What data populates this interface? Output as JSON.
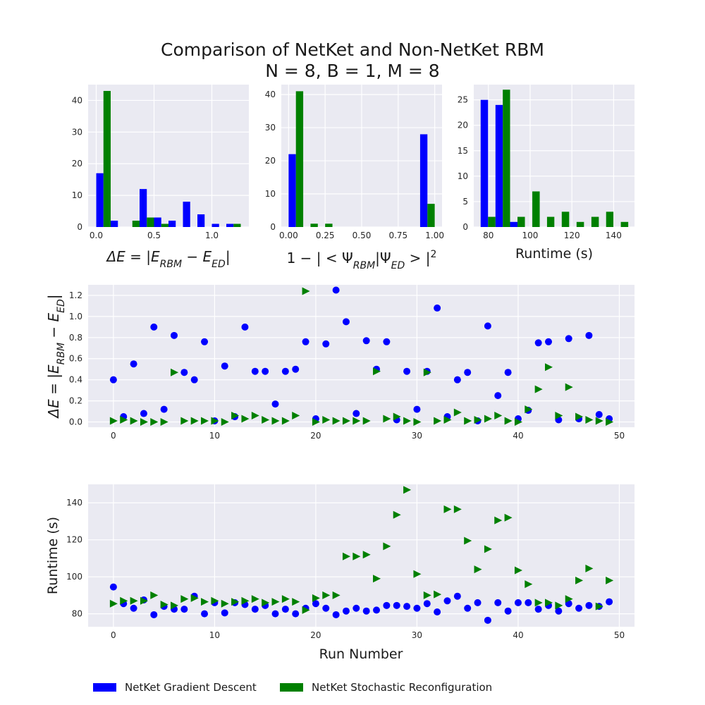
{
  "title_line1": "Comparison of NetKet and Non-NetKet RBM",
  "title_line2": "N = 8, B = 1, M = 8",
  "colors": {
    "gd": "#0000ff",
    "sr": "#008000",
    "axes_bg": "#eaeaf2",
    "grid": "#ffffff"
  },
  "legend": [
    {
      "label": "NetKet Gradient Descent",
      "color": "#0000ff"
    },
    {
      "label": "NetKet Stochastic Reconfiguration",
      "color": "#008000"
    }
  ],
  "chart_data": [
    {
      "type": "bar",
      "xlabel": "ΔE = |E_RBM − E_ED|",
      "xlim": [
        -0.07,
        1.32
      ],
      "ylim": [
        0,
        45
      ],
      "xticks": [
        0.0,
        0.5,
        1.0
      ],
      "xtick_labels": [
        "0.0",
        "0.5",
        "1.0"
      ],
      "yticks": [
        0,
        10,
        20,
        30,
        40
      ],
      "ytick_labels": [
        "0",
        "10",
        "20",
        "30",
        "40"
      ],
      "bin_edges": [
        0.0,
        0.125,
        0.25,
        0.375,
        0.5,
        0.625,
        0.75,
        0.875,
        1.0,
        1.125,
        1.25
      ],
      "series": [
        {
          "name": "NetKet Gradient Descent",
          "values": [
            17,
            2,
            0,
            12,
            3,
            2,
            8,
            4,
            1,
            1
          ]
        },
        {
          "name": "NetKet Stochastic Reconfiguration",
          "values": [
            43,
            0,
            2,
            3,
            1,
            0,
            0,
            0,
            0,
            1
          ]
        }
      ],
      "grid": true
    },
    {
      "type": "bar",
      "xlabel": "1 − | < Ψ_RBM|Ψ_ED > |²",
      "xlim": [
        -0.05,
        1.05
      ],
      "ylim": [
        0,
        43
      ],
      "xticks": [
        0.0,
        0.25,
        0.5,
        0.75,
        1.0
      ],
      "xtick_labels": [
        "0.00",
        "0.25",
        "0.50",
        "0.75",
        "1.00"
      ],
      "yticks": [
        0,
        10,
        20,
        30,
        40
      ],
      "ytick_labels": [
        "0",
        "10",
        "20",
        "30",
        "40"
      ],
      "bin_edges": [
        0.0,
        0.1,
        0.2,
        0.3,
        0.4,
        0.5,
        0.6,
        0.7,
        0.8,
        0.9,
        1.0
      ],
      "series": [
        {
          "name": "NetKet Gradient Descent",
          "values": [
            22,
            0,
            0,
            0,
            0,
            0,
            0,
            0,
            0,
            28
          ]
        },
        {
          "name": "NetKet Stochastic Reconfiguration",
          "values": [
            41,
            1,
            1,
            0,
            0,
            0,
            0,
            0,
            0,
            7
          ]
        }
      ],
      "grid": true
    },
    {
      "type": "bar",
      "xlabel": "Runtime (s)",
      "xlim": [
        73,
        150
      ],
      "ylim": [
        0,
        28
      ],
      "xticks": [
        80,
        100,
        120,
        140
      ],
      "xtick_labels": [
        "80",
        "100",
        "120",
        "140"
      ],
      "yticks": [
        0,
        5,
        10,
        15,
        20,
        25
      ],
      "ytick_labels": [
        "0",
        "5",
        "10",
        "15",
        "20",
        "25"
      ],
      "bin_edges": [
        76.3,
        83.4,
        90.4,
        97.5,
        104.6,
        111.6,
        118.7,
        125.8,
        132.9,
        139.9,
        147.0
      ],
      "series": [
        {
          "name": "NetKet Gradient Descent",
          "values": [
            25,
            24,
            1,
            0,
            0,
            0,
            0,
            0,
            0,
            0
          ]
        },
        {
          "name": "NetKet Stochastic Reconfiguration",
          "values": [
            2,
            27,
            2,
            7,
            2,
            3,
            1,
            2,
            3,
            1
          ]
        }
      ],
      "grid": true
    },
    {
      "type": "scatter",
      "ylabel": "ΔE = |E_RBM − E_ED|",
      "xlim": [
        -2.5,
        51.5
      ],
      "ylim": [
        -0.05,
        1.3
      ],
      "xticks": [
        0,
        10,
        20,
        30,
        40,
        50
      ],
      "xtick_labels": [
        "0",
        "10",
        "20",
        "30",
        "40",
        "50"
      ],
      "yticks": [
        0.0,
        0.2,
        0.4,
        0.6,
        0.8,
        1.0,
        1.2
      ],
      "ytick_labels": [
        "0.0",
        "0.2",
        "0.4",
        "0.6",
        "0.8",
        "1.0",
        "1.2"
      ],
      "x": [
        0,
        1,
        2,
        3,
        4,
        5,
        6,
        7,
        8,
        9,
        10,
        11,
        12,
        13,
        14,
        15,
        16,
        17,
        18,
        19,
        20,
        21,
        22,
        23,
        24,
        25,
        26,
        27,
        28,
        29,
        30,
        31,
        32,
        33,
        34,
        35,
        36,
        37,
        38,
        39,
        40,
        41,
        42,
        43,
        44,
        45,
        46,
        47,
        48,
        49
      ],
      "series": [
        {
          "name": "NetKet Gradient Descent",
          "marker": "circle",
          "values": [
            0.4,
            0.05,
            0.55,
            0.08,
            0.9,
            0.12,
            0.82,
            0.47,
            0.4,
            0.76,
            0.01,
            0.53,
            0.05,
            0.9,
            0.48,
            0.48,
            0.17,
            0.48,
            0.5,
            0.76,
            0.03,
            0.74,
            1.25,
            0.95,
            0.08,
            0.77,
            0.5,
            0.76,
            0.02,
            0.48,
            0.12,
            0.48,
            1.08,
            0.05,
            0.4,
            0.47,
            0.01,
            0.91,
            0.25,
            0.47,
            0.03,
            0.11,
            0.75,
            0.76,
            0.02,
            0.79,
            0.03,
            0.82,
            0.07,
            0.03
          ]
        },
        {
          "name": "NetKet Stochastic Reconfiguration",
          "marker": "triangle-right",
          "values": [
            0.01,
            0.02,
            0.01,
            0.0,
            0.0,
            0.0,
            0.47,
            0.01,
            0.01,
            0.01,
            0.01,
            0.0,
            0.06,
            0.03,
            0.06,
            0.02,
            0.01,
            0.01,
            0.06,
            1.24,
            0.0,
            0.02,
            0.01,
            0.01,
            0.01,
            0.01,
            0.48,
            0.03,
            0.05,
            0.01,
            0.0,
            0.47,
            0.01,
            0.02,
            0.09,
            0.01,
            0.02,
            0.03,
            0.06,
            0.01,
            0.0,
            0.12,
            0.31,
            0.52,
            0.06,
            0.33,
            0.05,
            0.02,
            0.01,
            0.0
          ]
        }
      ],
      "grid": true
    },
    {
      "type": "scatter",
      "xlabel": "Run Number",
      "ylabel": "Runtime (s)",
      "xlim": [
        -2.5,
        51.5
      ],
      "ylim": [
        73,
        150
      ],
      "xticks": [
        0,
        10,
        20,
        30,
        40,
        50
      ],
      "xtick_labels": [
        "0",
        "10",
        "20",
        "30",
        "40",
        "50"
      ],
      "yticks": [
        80,
        100,
        120,
        140
      ],
      "ytick_labels": [
        "80",
        "100",
        "120",
        "140"
      ],
      "x": [
        0,
        1,
        2,
        3,
        4,
        5,
        6,
        7,
        8,
        9,
        10,
        11,
        12,
        13,
        14,
        15,
        16,
        17,
        18,
        19,
        20,
        21,
        22,
        23,
        24,
        25,
        26,
        27,
        28,
        29,
        30,
        31,
        32,
        33,
        34,
        35,
        36,
        37,
        38,
        39,
        40,
        41,
        42,
        43,
        44,
        45,
        46,
        47,
        48,
        49
      ],
      "series": [
        {
          "name": "NetKet Gradient Descent",
          "marker": "circle",
          "values": [
            94.5,
            85.5,
            83,
            87.5,
            79.5,
            84,
            82.5,
            82.5,
            89.5,
            80,
            86,
            80.5,
            86,
            85,
            82.5,
            84.5,
            80,
            82.5,
            80,
            83,
            85.5,
            83,
            79.5,
            81.5,
            83,
            81.5,
            82,
            84.5,
            84.5,
            84,
            83,
            85.5,
            81,
            87,
            89.5,
            83,
            86,
            76.5,
            86,
            81.5,
            86,
            86,
            82.5,
            84.5,
            81.5,
            85.5,
            83,
            84.5,
            84,
            86.5
          ]
        },
        {
          "name": "NetKet Stochastic Reconfiguration",
          "marker": "triangle-right",
          "values": [
            85.5,
            87,
            87,
            87,
            90,
            85,
            84.5,
            88,
            88.5,
            86.5,
            87,
            85.5,
            86.5,
            87,
            88,
            86,
            86.5,
            88,
            86.5,
            82,
            88.5,
            90,
            90,
            111,
            111,
            112,
            99,
            116.5,
            133.5,
            147,
            101.5,
            90,
            90.5,
            136.5,
            136.5,
            119.5,
            104,
            115,
            130.5,
            132,
            103.5,
            96,
            86,
            86,
            84.5,
            88,
            98,
            104.5,
            84,
            98
          ]
        }
      ],
      "grid": true
    }
  ]
}
